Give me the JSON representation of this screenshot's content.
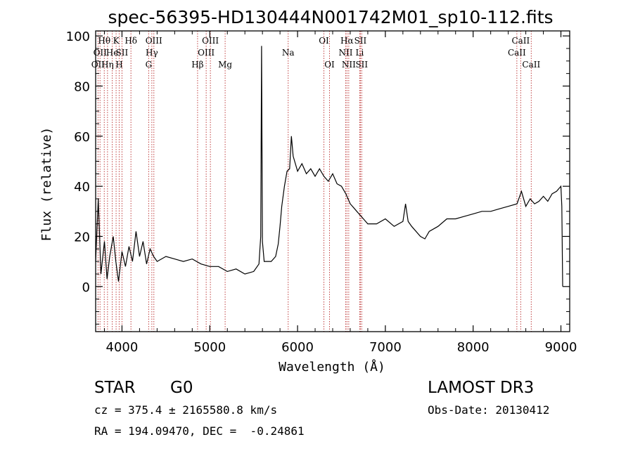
{
  "chart_data": {
    "type": "line",
    "title": "spec-56395-HD130444N001742M01_sp10-112.fits",
    "xlabel": "Wavelength (Å)",
    "ylabel": "Flux (relative)",
    "xlim": [
      3700,
      9100
    ],
    "ylim": [
      -18,
      102
    ],
    "x_ticks": [
      {
        "value": 4000,
        "label": "4000"
      },
      {
        "value": 5000,
        "label": "5000"
      },
      {
        "value": 6000,
        "label": "6000"
      },
      {
        "value": 7000,
        "label": "7000"
      },
      {
        "value": 8000,
        "label": "8000"
      },
      {
        "value": 9000,
        "label": "9000"
      }
    ],
    "y_ticks": [
      {
        "value": 0,
        "label": "0"
      },
      {
        "value": 20,
        "label": "20"
      },
      {
        "value": 40,
        "label": "40"
      },
      {
        "value": 60,
        "label": "60"
      },
      {
        "value": 80,
        "label": "80"
      },
      {
        "value": 100,
        "label": "100"
      }
    ],
    "series": [
      {
        "line_color": "#000000",
        "points": [
          [
            3700,
            10
          ],
          [
            3730,
            35
          ],
          [
            3760,
            5
          ],
          [
            3800,
            18
          ],
          [
            3830,
            3
          ],
          [
            3860,
            12
          ],
          [
            3900,
            20
          ],
          [
            3930,
            10
          ],
          [
            3960,
            2
          ],
          [
            4000,
            14
          ],
          [
            4040,
            8
          ],
          [
            4080,
            16
          ],
          [
            4120,
            10
          ],
          [
            4160,
            22
          ],
          [
            4200,
            12
          ],
          [
            4240,
            18
          ],
          [
            4280,
            9
          ],
          [
            4320,
            15
          ],
          [
            4360,
            12
          ],
          [
            4400,
            10
          ],
          [
            4500,
            12
          ],
          [
            4600,
            11
          ],
          [
            4700,
            10
          ],
          [
            4800,
            11
          ],
          [
            4900,
            9
          ],
          [
            5000,
            8
          ],
          [
            5100,
            8
          ],
          [
            5200,
            6
          ],
          [
            5300,
            7
          ],
          [
            5400,
            5
          ],
          [
            5500,
            6
          ],
          [
            5560,
            9
          ],
          [
            5580,
            20
          ],
          [
            5590,
            96
          ],
          [
            5600,
            18
          ],
          [
            5620,
            10
          ],
          [
            5700,
            10
          ],
          [
            5750,
            12
          ],
          [
            5780,
            17
          ],
          [
            5800,
            24
          ],
          [
            5820,
            32
          ],
          [
            5850,
            40
          ],
          [
            5880,
            46
          ],
          [
            5910,
            47
          ],
          [
            5930,
            60
          ],
          [
            5950,
            52
          ],
          [
            6000,
            46
          ],
          [
            6050,
            49
          ],
          [
            6100,
            45
          ],
          [
            6150,
            47
          ],
          [
            6200,
            44
          ],
          [
            6250,
            47
          ],
          [
            6300,
            44
          ],
          [
            6350,
            42
          ],
          [
            6400,
            45
          ],
          [
            6450,
            41
          ],
          [
            6500,
            40
          ],
          [
            6550,
            37
          ],
          [
            6600,
            33
          ],
          [
            6650,
            31
          ],
          [
            6700,
            29
          ],
          [
            6750,
            27
          ],
          [
            6800,
            25
          ],
          [
            6900,
            25
          ],
          [
            7000,
            27
          ],
          [
            7100,
            24
          ],
          [
            7200,
            26
          ],
          [
            7230,
            33
          ],
          [
            7260,
            26
          ],
          [
            7300,
            24
          ],
          [
            7400,
            20
          ],
          [
            7450,
            19
          ],
          [
            7500,
            22
          ],
          [
            7600,
            24
          ],
          [
            7700,
            27
          ],
          [
            7800,
            27
          ],
          [
            7900,
            28
          ],
          [
            8000,
            29
          ],
          [
            8100,
            30
          ],
          [
            8200,
            30
          ],
          [
            8300,
            31
          ],
          [
            8400,
            32
          ],
          [
            8500,
            33
          ],
          [
            8550,
            38
          ],
          [
            8600,
            32
          ],
          [
            8650,
            35
          ],
          [
            8700,
            33
          ],
          [
            8750,
            34
          ],
          [
            8800,
            36
          ],
          [
            8850,
            34
          ],
          [
            8900,
            37
          ],
          [
            8950,
            38
          ],
          [
            9000,
            40
          ],
          [
            9010,
            32
          ],
          [
            9020,
            0
          ]
        ]
      }
    ],
    "line_marker_color": "#c04040",
    "spectral_lines": [
      {
        "wavelength": 3727,
        "label": "OII",
        "row": 3
      },
      {
        "wavelength": 3750,
        "label": "OII",
        "row": 2
      },
      {
        "wavelength": 3798,
        "label": "Hθ",
        "row": 1
      },
      {
        "wavelength": 3835,
        "label": "Hη",
        "row": 3
      },
      {
        "wavelength": 3889,
        "label": "He",
        "row": 2
      },
      {
        "wavelength": 3933,
        "label": "K",
        "row": 1
      },
      {
        "wavelength": 3968,
        "label": "H",
        "row": 3
      },
      {
        "wavelength": 4000,
        "label": "SII",
        "row": 2
      },
      {
        "wavelength": 4102,
        "label": "Hδ",
        "row": 1
      },
      {
        "wavelength": 4304,
        "label": "G",
        "row": 3
      },
      {
        "wavelength": 4340,
        "label": "Hγ",
        "row": 2
      },
      {
        "wavelength": 4363,
        "label": "OIII",
        "row": 1
      },
      {
        "wavelength": 4861,
        "label": "Hβ",
        "row": 3
      },
      {
        "wavelength": 4959,
        "label": "OIII",
        "row": 2
      },
      {
        "wavelength": 5007,
        "label": "OIII",
        "row": 1
      },
      {
        "wavelength": 5175,
        "label": "Mg",
        "row": 3
      },
      {
        "wavelength": 5893,
        "label": "Na",
        "row": 2
      },
      {
        "wavelength": 6300,
        "label": "OI",
        "row": 1
      },
      {
        "wavelength": 6364,
        "label": "OI",
        "row": 3
      },
      {
        "wavelength": 6548,
        "label": "NII",
        "row": 2
      },
      {
        "wavelength": 6563,
        "label": "Hα",
        "row": 1
      },
      {
        "wavelength": 6583,
        "label": "NII",
        "row": 3
      },
      {
        "wavelength": 6708,
        "label": "Li",
        "row": 2
      },
      {
        "wavelength": 6716,
        "label": "SII",
        "row": 1
      },
      {
        "wavelength": 6731,
        "label": "SII",
        "row": 3
      },
      {
        "wavelength": 8498,
        "label": "CaII",
        "row": 2
      },
      {
        "wavelength": 8542,
        "label": "CaII",
        "row": 1
      },
      {
        "wavelength": 8662,
        "label": "CaII",
        "row": 3
      }
    ]
  },
  "info": {
    "object_class": "STAR",
    "subclass": "G0",
    "survey": "LAMOST DR3",
    "redshift_line": "cz = 375.4 ± 2165580.8 km/s",
    "obs_date_line": "Obs-Date: 20130412",
    "coords_line": "RA = 194.09470, DEC =  -0.24861"
  }
}
